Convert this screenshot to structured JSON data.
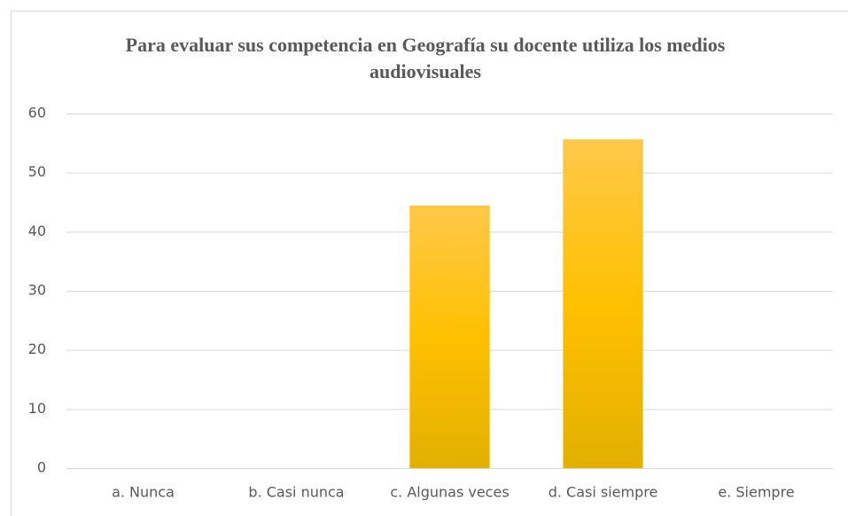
{
  "chart_data": {
    "type": "bar",
    "title": "Para evaluar sus competencia en Geografía su docente utiliza los medios audiovisuales",
    "categories": [
      "a. Nunca",
      "b. Casi nunca",
      "c. Algunas veces",
      "d. Casi siempre",
      "e. Siempre"
    ],
    "values": [
      0,
      0,
      44.4,
      55.6,
      0
    ],
    "color": "#ffc000",
    "ylim": [
      0,
      60
    ],
    "yticks": [
      0,
      10,
      20,
      30,
      40,
      50,
      60
    ],
    "grid": true
  }
}
